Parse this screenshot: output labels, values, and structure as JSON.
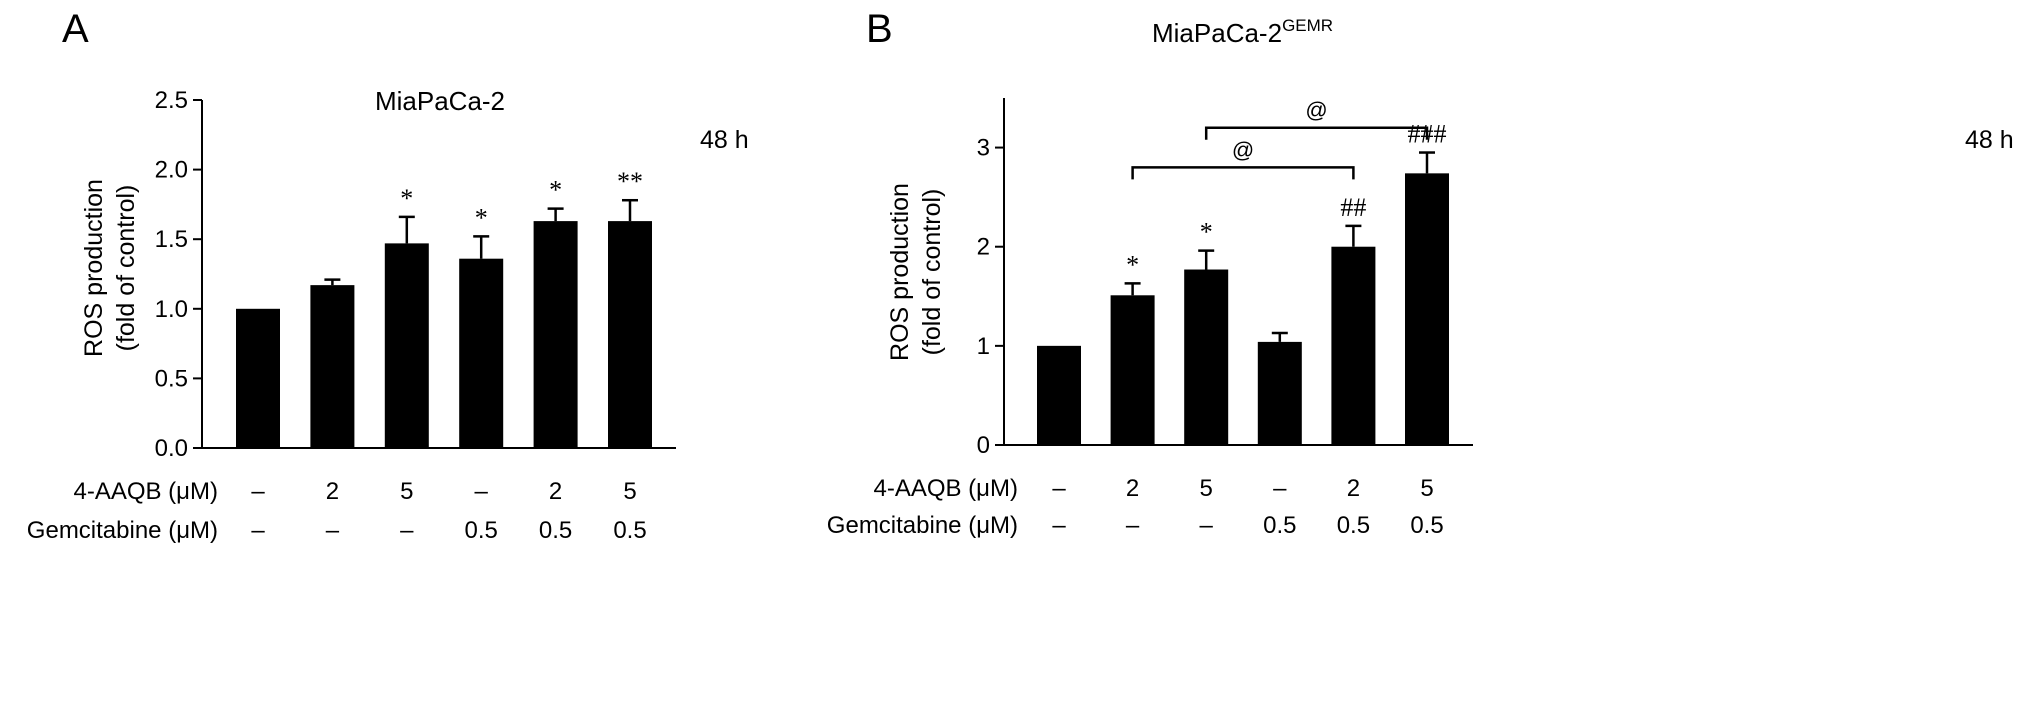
{
  "chart_data": [
    {
      "type": "bar",
      "panel": "A",
      "title": "MiaPaCa-2",
      "title_sup": "",
      "time_label": "48 h",
      "ylabel": [
        "ROS production",
        "(fold of control)"
      ],
      "ylim": [
        0,
        2.5
      ],
      "yticks": [
        "0.0",
        "0.5",
        "1.0",
        "1.5",
        "2.0",
        "2.5"
      ],
      "ytick_values": [
        0,
        0.5,
        1.0,
        1.5,
        2.0,
        2.5
      ],
      "values": [
        1.0,
        1.17,
        1.47,
        1.36,
        1.63,
        1.63
      ],
      "errors": [
        0,
        0.04,
        0.19,
        0.16,
        0.09,
        0.15
      ],
      "significance": [
        "",
        "",
        "*",
        "*",
        "*",
        "**"
      ],
      "conditions": [
        {
          "label": "4-AAQB (μM)",
          "values": [
            "–",
            "2",
            "5",
            "–",
            "2",
            "5"
          ]
        },
        {
          "label": "Gemcitabine (μM)",
          "values": [
            "–",
            "–",
            "–",
            "0.5",
            "0.5",
            "0.5"
          ]
        }
      ],
      "brackets": [],
      "bar_color": "#000000"
    },
    {
      "type": "bar",
      "panel": "B",
      "title": "MiaPaCa-2",
      "title_sup": "GEMR",
      "time_label": "48 h",
      "ylabel": [
        "ROS production",
        "(fold of control)"
      ],
      "ylim": [
        0,
        3.5
      ],
      "yticks": [
        "0",
        "1",
        "2",
        "3"
      ],
      "ytick_values": [
        0,
        1,
        2,
        3
      ],
      "values": [
        1.0,
        1.51,
        1.77,
        1.04,
        2.0,
        2.74
      ],
      "errors": [
        0,
        0.12,
        0.19,
        0.09,
        0.21,
        0.21
      ],
      "significance": [
        "",
        "*",
        "*",
        "",
        "##",
        "###"
      ],
      "conditions": [
        {
          "label": "4-AAQB (μM)",
          "values": [
            "–",
            "2",
            "5",
            "–",
            "2",
            "5"
          ]
        },
        {
          "label": "Gemcitabine (μM)",
          "values": [
            "–",
            "–",
            "–",
            "0.5",
            "0.5",
            "0.5"
          ]
        }
      ],
      "brackets": [
        {
          "from": 1,
          "to": 4,
          "value": 2.8,
          "label": "@"
        },
        {
          "from": 2,
          "to": 5,
          "value": 3.2,
          "label": "@"
        }
      ],
      "bar_color": "#000000"
    }
  ]
}
